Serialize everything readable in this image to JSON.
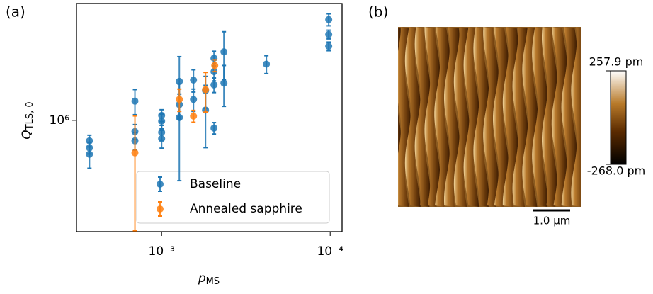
{
  "chart_data": [
    {
      "type": "scatter",
      "label": "(a)",
      "xlabel": {
        "main": "p",
        "sub": "MS"
      },
      "ylabel": {
        "main": "Q",
        "sub": "TLS, 0"
      },
      "xscale": "log",
      "yscale": "log",
      "xlim": [
        0.0032,
        8.5e-05
      ],
      "ylim": [
        220000.0,
        4900000.0
      ],
      "xticks": [
        {
          "value": 0.001,
          "label": "10⁻³"
        },
        {
          "value": 0.0001,
          "label": "10⁻⁴"
        }
      ],
      "yticks": [
        {
          "value": 1000000.0,
          "label": "10⁶"
        }
      ],
      "legend": "lower right",
      "series": [
        {
          "name": "Baseline",
          "color": "#1f77b4",
          "x": [
            0.00268,
            0.00268,
            0.00268,
            0.00144,
            0.00144,
            0.00144,
            0.001,
            0.001,
            0.001,
            0.001,
            0.000785,
            0.000785,
            0.000785,
            0.000647,
            0.000647,
            0.000549,
            0.000549,
            0.000489,
            0.000489,
            0.000489,
            0.000489,
            0.000427,
            0.000427,
            0.000239,
            0.000102,
            0.000102,
            0.000102
          ],
          "values": [
            757000.0,
            688000.0,
            631000.0,
            1300000.0,
            858000.0,
            757000.0,
            1070000.0,
            990000.0,
            849000.0,
            779000.0,
            1700000.0,
            1240000.0,
            1040000.0,
            1730000.0,
            1330000.0,
            1500000.0,
            1150000.0,
            2330000.0,
            1940000.0,
            1620000.0,
            900000.0,
            2540000.0,
            1660000.0,
            2150000.0,
            3940000.0,
            3220000.0,
            2740000.0
          ],
          "yerr": [
            60000.0,
            55000.0,
            110000.0,
            220000.0,
            86000.0,
            90000.0,
            86000.0,
            100000.0,
            85000.0,
            94000.0,
            680000.0,
            190000.0,
            600000.0,
            260000.0,
            200000.0,
            320000.0,
            460000.0,
            230000.0,
            230000.0,
            160000.0,
            70000.0,
            800000.0,
            450000.0,
            260000.0,
            320000.0,
            190000.0,
            160000.0
          ]
        },
        {
          "name": "Annealed sapphire",
          "color": "#ff7f0e",
          "x": [
            0.00144,
            0.000785,
            0.000647,
            0.000549,
            0.000484
          ],
          "values": [
            643000.0,
            1330000.0,
            1060000.0,
            1520000.0,
            2110000.0
          ],
          "yerr": [
            420000.0,
            200000.0,
            85000.0,
            400000.0,
            170000.0
          ]
        }
      ]
    },
    {
      "type": "image",
      "label": "(b)",
      "colorbar": {
        "clim": [
          -268.0,
          257.9
        ],
        "ticks": [
          {
            "value": 257.9,
            "label": "257.9 pm"
          },
          {
            "value": -268.0,
            "label": "-268.0 pm"
          }
        ]
      },
      "scale_bar": {
        "label": "1.0 μm"
      }
    }
  ]
}
